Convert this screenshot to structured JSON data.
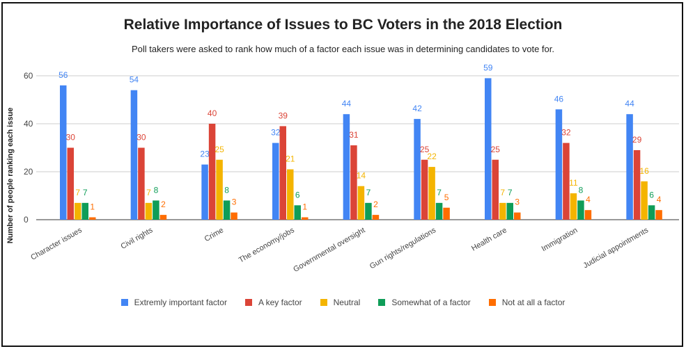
{
  "chart_data": {
    "type": "bar",
    "title": "Relative Importance of Issues to BC Voters in the 2018 Election",
    "subtitle": "Poll takers were asked to rank how much of a factor each issue was in determining candidates to vote for.",
    "ylabel": "Number of people ranking each issue",
    "xlabel": "",
    "ylim": [
      0,
      60
    ],
    "yticks": [
      "0",
      "20",
      "40",
      "60"
    ],
    "grid": true,
    "legend_position": "bottom",
    "categories": [
      "Character issues",
      "Civil rights",
      "Crime",
      "The economy/jobs",
      "Governmental oversight",
      "Gun rights/regulations",
      "Health care",
      "Immigration",
      "Judicial appointments"
    ],
    "series": [
      {
        "name": "Extremly important factor",
        "color": "#4285f4",
        "values": [
          56,
          54,
          23,
          32,
          44,
          42,
          59,
          46,
          44
        ]
      },
      {
        "name": "A key factor",
        "color": "#db4437",
        "values": [
          30,
          30,
          40,
          39,
          31,
          25,
          25,
          32,
          29
        ]
      },
      {
        "name": "Neutral",
        "color": "#f4b400",
        "values": [
          7,
          7,
          25,
          21,
          14,
          22,
          7,
          11,
          16
        ]
      },
      {
        "name": "Somewhat of a factor",
        "color": "#0f9d58",
        "values": [
          7,
          8,
          8,
          6,
          7,
          7,
          7,
          8,
          6
        ]
      },
      {
        "name": "Not at all a factor",
        "color": "#ff6d00",
        "values": [
          1,
          2,
          3,
          1,
          2,
          5,
          3,
          4,
          4
        ]
      }
    ]
  }
}
